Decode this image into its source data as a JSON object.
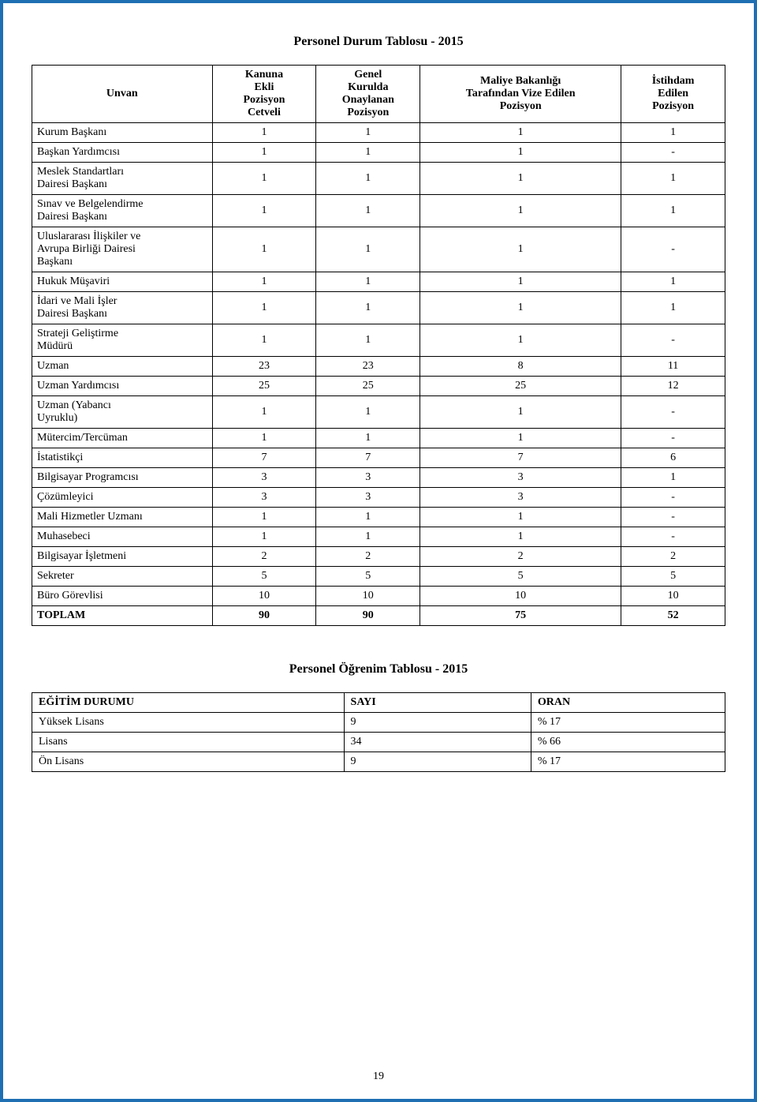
{
  "page": {
    "border_color": "#1f6fb3",
    "table_border_color": "#000000",
    "number": "19"
  },
  "table1": {
    "title": "Personel Durum Tablosu - 2015",
    "headers": {
      "c1": "Unvan",
      "c2": "Kanuna\nEkli\nPozisyon\nCetveli",
      "c3": "Genel\nKurulda\nOnaylanan\nPozisyon",
      "c4": "Maliye Bakanlığı\nTarafından Vize Edilen\nPozisyon",
      "c5": "İstihdam\nEdilen\nPozisyon"
    },
    "rows": [
      {
        "name": "Kurum Başkanı",
        "c2": "1",
        "c3": "1",
        "c4": "1",
        "c5": "1"
      },
      {
        "name": "Başkan Yardımcısı",
        "c2": "1",
        "c3": "1",
        "c4": "1",
        "c5": "-"
      },
      {
        "name": "Meslek Standartları\nDairesi Başkanı",
        "c2": "1",
        "c3": "1",
        "c4": "1",
        "c5": "1"
      },
      {
        "name": "Sınav ve Belgelendirme\nDairesi Başkanı",
        "c2": "1",
        "c3": "1",
        "c4": "1",
        "c5": "1"
      },
      {
        "name": "Uluslararası İlişkiler ve\nAvrupa Birliği Dairesi\nBaşkanı",
        "c2": "1",
        "c3": "1",
        "c4": "1",
        "c5": "-"
      },
      {
        "name": "Hukuk Müşaviri",
        "c2": "1",
        "c3": "1",
        "c4": "1",
        "c5": "1"
      },
      {
        "name": "İdari ve Mali İşler\nDairesi Başkanı",
        "c2": "1",
        "c3": "1",
        "c4": "1",
        "c5": "1"
      },
      {
        "name": "Strateji Geliştirme\nMüdürü",
        "c2": "1",
        "c3": "1",
        "c4": "1",
        "c5": "-"
      },
      {
        "name": "Uzman",
        "c2": "23",
        "c3": "23",
        "c4": "8",
        "c5": "11"
      },
      {
        "name": "Uzman Yardımcısı",
        "c2": "25",
        "c3": "25",
        "c4": "25",
        "c5": "12"
      },
      {
        "name": "Uzman (Yabancı\nUyruklu)",
        "c2": "1",
        "c3": "1",
        "c4": "1",
        "c5": "-"
      },
      {
        "name": "Mütercim/Tercüman",
        "c2": "1",
        "c3": "1",
        "c4": "1",
        "c5": "-"
      },
      {
        "name": "İstatistikçi",
        "c2": "7",
        "c3": "7",
        "c4": "7",
        "c5": "6"
      },
      {
        "name": "Bilgisayar Programcısı",
        "c2": "3",
        "c3": "3",
        "c4": "3",
        "c5": "1"
      },
      {
        "name": "Çözümleyici",
        "c2": "3",
        "c3": "3",
        "c4": "3",
        "c5": "-"
      },
      {
        "name": "Mali Hizmetler Uzmanı",
        "c2": "1",
        "c3": "1",
        "c4": "1",
        "c5": "-"
      },
      {
        "name": "Muhasebeci",
        "c2": "1",
        "c3": "1",
        "c4": "1",
        "c5": "-"
      },
      {
        "name": "Bilgisayar İşletmeni",
        "c2": "2",
        "c3": "2",
        "c4": "2",
        "c5": "2"
      },
      {
        "name": "Sekreter",
        "c2": "5",
        "c3": "5",
        "c4": "5",
        "c5": "5"
      },
      {
        "name": "Büro Görevlisi",
        "c2": "10",
        "c3": "10",
        "c4": "10",
        "c5": "10"
      }
    ],
    "total": {
      "name": "TOPLAM",
      "c2": "90",
      "c3": "90",
      "c4": "75",
      "c5": "52"
    }
  },
  "table2": {
    "title": "Personel Öğrenim Tablosu - 2015",
    "headers": {
      "c1": "EĞİTİM DURUMU",
      "c2": "SAYI",
      "c3": "ORAN"
    },
    "rows": [
      {
        "name": "Yüksek Lisans",
        "c2": "9",
        "c3": "% 17"
      },
      {
        "name": "Lisans",
        "c2": "34",
        "c3": "% 66"
      },
      {
        "name": "Ön Lisans",
        "c2": "9",
        "c3": "% 17"
      }
    ]
  }
}
